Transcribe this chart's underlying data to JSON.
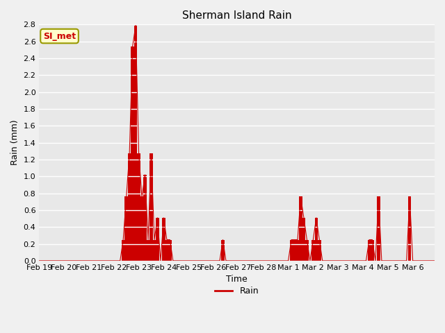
{
  "title": "Sherman Island Rain",
  "xlabel": "Time",
  "ylabel": "Rain (mm)",
  "legend_label": "Rain",
  "line_color": "#cc0000",
  "fig_bg_color": "#f0f0f0",
  "plot_bg_color": "#e8e8e8",
  "ylim": [
    0.0,
    2.8
  ],
  "yticks": [
    0.0,
    0.2,
    0.4,
    0.6,
    0.8,
    1.0,
    1.2,
    1.4,
    1.6,
    1.8,
    2.0,
    2.2,
    2.4,
    2.6,
    2.8
  ],
  "xtick_labels": [
    "Feb 19",
    "Feb 20",
    "Feb 21",
    "Feb 22",
    "Feb 23",
    "Feb 24",
    "Feb 25",
    "Feb 26",
    "Feb 27",
    "Feb 28",
    "Mar 1",
    "Mar 2",
    "Mar 3",
    "Mar 4",
    "Mar 5",
    "Mar 6"
  ],
  "annotation_text": "SI_met",
  "points_per_day": 8,
  "time_series": [
    0.0,
    0.0,
    0.0,
    0.0,
    0.0,
    0.0,
    0.0,
    0.0,
    0.0,
    0.0,
    0.0,
    0.0,
    0.0,
    0.0,
    0.0,
    0.0,
    0.0,
    0.0,
    0.0,
    0.0,
    0.0,
    0.0,
    0.0,
    0.0,
    0.0,
    0.0,
    0.0,
    0.25,
    0.76,
    1.27,
    2.54,
    2.79,
    1.27,
    0.76,
    1.02,
    0.25,
    1.27,
    0.25,
    0.51,
    0.0,
    0.51,
    0.25,
    0.25,
    0.0,
    0.0,
    0.0,
    0.0,
    0.0,
    0.0,
    0.0,
    0.0,
    0.0,
    0.0,
    0.0,
    0.0,
    0.0,
    0.0,
    0.0,
    0.0,
    0.25,
    0.0,
    0.0,
    0.0,
    0.0,
    0.0,
    0.0,
    0.0,
    0.0,
    0.0,
    0.0,
    0.0,
    0.0,
    0.0,
    0.0,
    0.0,
    0.0,
    0.0,
    0.0,
    0.0,
    0.0,
    0.0,
    0.25,
    0.25,
    0.25,
    0.76,
    0.51,
    0.25,
    0.0,
    0.25,
    0.51,
    0.25,
    0.0,
    0.0,
    0.0,
    0.0,
    0.0,
    0.0,
    0.0,
    0.0,
    0.0,
    0.0,
    0.0,
    0.0,
    0.0,
    0.0,
    0.0,
    0.25,
    0.25,
    0.0,
    0.76,
    0.0,
    0.0,
    0.0,
    0.0,
    0.0,
    0.0,
    0.0,
    0.0,
    0.0,
    0.76,
    0.0,
    0.0,
    0.0,
    0.0,
    0.0,
    0.0,
    0.0,
    0.0
  ]
}
